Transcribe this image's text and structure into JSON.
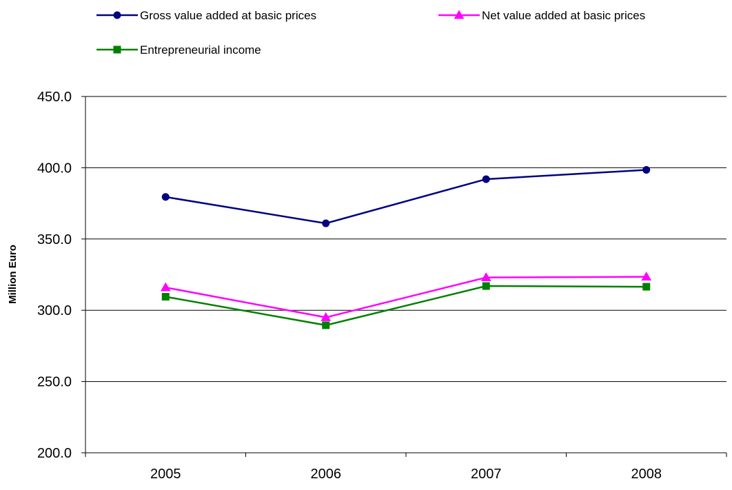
{
  "chart_data": {
    "type": "line",
    "title": "",
    "xlabel": "",
    "ylabel": "Million Euro",
    "categories": [
      "2005",
      "2006",
      "2007",
      "2008"
    ],
    "ylim": [
      200,
      450
    ],
    "yticks": [
      "200.0",
      "250.0",
      "300.0",
      "350.0",
      "400.0",
      "450.0"
    ],
    "grid": true,
    "legend_position": "top",
    "series": [
      {
        "name": "Gross value added at basic prices",
        "values": [
          379.5,
          361.0,
          392.0,
          398.5
        ],
        "color": "#000080",
        "marker": "circle"
      },
      {
        "name": "Net value added at basic prices",
        "values": [
          316.0,
          295.0,
          323.0,
          323.5
        ],
        "color": "#ff00ff",
        "marker": "triangle"
      },
      {
        "name": "Entrepreneurial income",
        "values": [
          309.5,
          289.5,
          317.0,
          316.5
        ],
        "color": "#008000",
        "marker": "square"
      }
    ]
  }
}
